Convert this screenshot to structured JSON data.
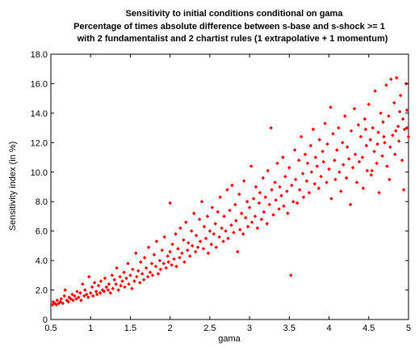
{
  "chart_data": {
    "type": "scatter",
    "title_lines": [
      "Sensitivity to initial conditions conditional on gama",
      "Percentage of times absolute difference between s-base and s-shock >= 1",
      "with 2 fundamentalist and 2 chartist rules (1 extrapolative + 1 momentum)"
    ],
    "xlabel": "gama",
    "ylabel": "Sensitivity index (in %)",
    "xlim": [
      0.5,
      5
    ],
    "ylim": [
      0,
      18
    ],
    "x_ticks": [
      "0.5",
      "1",
      "1.5",
      "2",
      "2.5",
      "3",
      "3.5",
      "4",
      "4.5",
      "5"
    ],
    "y_ticks": [
      "0",
      "2.0",
      "4.0",
      "6.0",
      "8.0",
      "10.0",
      "12.0",
      "14.0",
      "16.0",
      "18.0"
    ],
    "grid": false,
    "marker_color": "#ff0000",
    "series": [
      {
        "points": [
          [
            0.52,
            1.0
          ],
          [
            0.53,
            1.2
          ],
          [
            0.55,
            1.1
          ],
          [
            0.57,
            1.0
          ],
          [
            0.58,
            1.3
          ],
          [
            0.6,
            1.1
          ],
          [
            0.62,
            1.2
          ],
          [
            0.63,
            1.4
          ],
          [
            0.65,
            1.1
          ],
          [
            0.67,
            1.6
          ],
          [
            0.68,
            2.0
          ],
          [
            0.7,
            1.3
          ],
          [
            0.72,
            1.2
          ],
          [
            0.73,
            1.5
          ],
          [
            0.75,
            1.4
          ],
          [
            0.77,
            1.7
          ],
          [
            0.78,
            1.3
          ],
          [
            0.8,
            1.6
          ],
          [
            0.82,
            1.4
          ],
          [
            0.83,
            1.9
          ],
          [
            0.85,
            1.5
          ],
          [
            0.87,
            1.8
          ],
          [
            0.88,
            1.3
          ],
          [
            0.9,
            2.4
          ],
          [
            0.92,
            1.6
          ],
          [
            0.93,
            2.0
          ],
          [
            0.95,
            1.7
          ],
          [
            0.97,
            1.5
          ],
          [
            0.98,
            2.9
          ],
          [
            1.0,
            1.8
          ],
          [
            1.02,
            2.2
          ],
          [
            1.03,
            1.6
          ],
          [
            1.05,
            2.5
          ],
          [
            1.07,
            1.9
          ],
          [
            1.08,
            1.7
          ],
          [
            1.1,
            2.3
          ],
          [
            1.12,
            1.8
          ],
          [
            1.13,
            2.6
          ],
          [
            1.15,
            2.0
          ],
          [
            1.17,
            1.9
          ],
          [
            1.18,
            2.8
          ],
          [
            1.2,
            2.2
          ],
          [
            1.22,
            2.0
          ],
          [
            1.23,
            2.4
          ],
          [
            1.25,
            1.8
          ],
          [
            1.27,
            3.0
          ],
          [
            1.28,
            2.1
          ],
          [
            1.3,
            2.7
          ],
          [
            1.32,
            2.4
          ],
          [
            1.33,
            3.5
          ],
          [
            1.35,
            2.0
          ],
          [
            1.37,
            2.9
          ],
          [
            1.38,
            2.3
          ],
          [
            1.4,
            2.6
          ],
          [
            1.42,
            3.2
          ],
          [
            1.43,
            2.2
          ],
          [
            1.45,
            2.8
          ],
          [
            1.47,
            3.8
          ],
          [
            1.48,
            2.4
          ],
          [
            1.5,
            3.0
          ],
          [
            1.52,
            2.1
          ],
          [
            1.53,
            3.4
          ],
          [
            1.55,
            2.6
          ],
          [
            1.57,
            4.5
          ],
          [
            1.58,
            2.9
          ],
          [
            1.6,
            3.3
          ],
          [
            1.62,
            2.5
          ],
          [
            1.63,
            3.9
          ],
          [
            1.65,
            3.1
          ],
          [
            1.67,
            2.7
          ],
          [
            1.68,
            4.2
          ],
          [
            1.7,
            3.5
          ],
          [
            1.72,
            2.9
          ],
          [
            1.73,
            4.9
          ],
          [
            1.75,
            3.2
          ],
          [
            1.77,
            3.8
          ],
          [
            1.78,
            3.0
          ],
          [
            1.8,
            4.4
          ],
          [
            1.82,
            3.6
          ],
          [
            1.83,
            5.3
          ],
          [
            1.85,
            3.1
          ],
          [
            1.87,
            4.0
          ],
          [
            1.88,
            3.4
          ],
          [
            1.9,
            4.7
          ],
          [
            1.92,
            3.8
          ],
          [
            1.93,
            5.6
          ],
          [
            1.95,
            3.5
          ],
          [
            1.97,
            4.3
          ],
          [
            1.98,
            3.9
          ],
          [
            2.0,
            7.9
          ],
          [
            2.0,
            4.6
          ],
          [
            2.02,
            3.7
          ],
          [
            2.03,
            5.1
          ],
          [
            2.05,
            4.1
          ],
          [
            2.07,
            5.8
          ],
          [
            2.08,
            3.6
          ],
          [
            2.1,
            4.8
          ],
          [
            2.12,
            4.2
          ],
          [
            2.13,
            6.2
          ],
          [
            2.15,
            4.5
          ],
          [
            2.17,
            5.4
          ],
          [
            2.18,
            3.9
          ],
          [
            2.2,
            6.6
          ],
          [
            2.22,
            4.7
          ],
          [
            2.23,
            5.2
          ],
          [
            2.25,
            4.3
          ],
          [
            2.27,
            6.0
          ],
          [
            2.28,
            5.0
          ],
          [
            2.3,
            7.2
          ],
          [
            2.32,
            4.6
          ],
          [
            2.33,
            5.7
          ],
          [
            2.35,
            4.9
          ],
          [
            2.37,
            6.8
          ],
          [
            2.38,
            5.3
          ],
          [
            2.4,
            8.0
          ],
          [
            2.42,
            4.8
          ],
          [
            2.43,
            6.3
          ],
          [
            2.45,
            5.5
          ],
          [
            2.47,
            7.0
          ],
          [
            2.48,
            4.5
          ],
          [
            2.5,
            6.0
          ],
          [
            2.52,
            5.1
          ],
          [
            2.53,
            7.6
          ],
          [
            2.55,
            5.8
          ],
          [
            2.57,
            6.5
          ],
          [
            2.58,
            4.9
          ],
          [
            2.6,
            7.3
          ],
          [
            2.62,
            5.6
          ],
          [
            2.63,
            8.3
          ],
          [
            2.65,
            6.2
          ],
          [
            2.67,
            5.3
          ],
          [
            2.68,
            7.0
          ],
          [
            2.7,
            6.0
          ],
          [
            2.72,
            8.8
          ],
          [
            2.73,
            5.5
          ],
          [
            2.75,
            7.4
          ],
          [
            2.77,
            6.4
          ],
          [
            2.78,
            9.1
          ],
          [
            2.8,
            5.9
          ],
          [
            2.82,
            7.8
          ],
          [
            2.83,
            6.7
          ],
          [
            2.85,
            4.6
          ],
          [
            2.87,
            8.5
          ],
          [
            2.88,
            6.1
          ],
          [
            2.9,
            7.2
          ],
          [
            2.92,
            5.8
          ],
          [
            2.93,
            9.4
          ],
          [
            2.95,
            6.9
          ],
          [
            2.97,
            8.0
          ],
          [
            2.98,
            6.3
          ],
          [
            3.0,
            7.6
          ],
          [
            3.02,
            10.4
          ],
          [
            3.03,
            6.6
          ],
          [
            3.05,
            8.2
          ],
          [
            3.07,
            7.0
          ],
          [
            3.08,
            9.0
          ],
          [
            3.1,
            6.2
          ],
          [
            3.12,
            7.9
          ],
          [
            3.13,
            8.6
          ],
          [
            3.15,
            6.8
          ],
          [
            3.17,
            9.6
          ],
          [
            3.18,
            7.3
          ],
          [
            3.2,
            8.3
          ],
          [
            3.22,
            6.5
          ],
          [
            3.23,
            10.1
          ],
          [
            3.25,
            7.8
          ],
          [
            3.27,
            13.0
          ],
          [
            3.28,
            8.8
          ],
          [
            3.3,
            7.1
          ],
          [
            3.32,
            9.3
          ],
          [
            3.33,
            8.1
          ],
          [
            3.35,
            10.6
          ],
          [
            3.37,
            7.5
          ],
          [
            3.38,
            9.0
          ],
          [
            3.4,
            8.4
          ],
          [
            3.42,
            11.0
          ],
          [
            3.43,
            7.7
          ],
          [
            3.45,
            9.7
          ],
          [
            3.47,
            8.7
          ],
          [
            3.48,
            7.2
          ],
          [
            3.5,
            10.3
          ],
          [
            3.52,
            3.0
          ],
          [
            3.53,
            9.1
          ],
          [
            3.55,
            8.0
          ],
          [
            3.57,
            11.5
          ],
          [
            3.58,
            9.5
          ],
          [
            3.6,
            7.9
          ],
          [
            3.62,
            10.8
          ],
          [
            3.63,
            8.8
          ],
          [
            3.65,
            12.4
          ],
          [
            3.67,
            9.9
          ],
          [
            3.68,
            8.3
          ],
          [
            3.7,
            11.2
          ],
          [
            3.72,
            9.4
          ],
          [
            3.73,
            10.6
          ],
          [
            3.75,
            8.6
          ],
          [
            3.77,
            11.8
          ],
          [
            3.78,
            10.0
          ],
          [
            3.8,
            12.9
          ],
          [
            3.82,
            9.2
          ],
          [
            3.83,
            11.0
          ],
          [
            3.85,
            10.4
          ],
          [
            3.87,
            8.9
          ],
          [
            3.88,
            12.2
          ],
          [
            3.9,
            9.7
          ],
          [
            3.92,
            11.4
          ],
          [
            3.93,
            10.7
          ],
          [
            3.95,
            13.3
          ],
          [
            3.97,
            9.3
          ],
          [
            3.98,
            11.9
          ],
          [
            4.0,
            10.2
          ],
          [
            4.02,
            14.4
          ],
          [
            4.03,
            8.2
          ],
          [
            4.05,
            12.6
          ],
          [
            4.07,
            10.8
          ],
          [
            4.08,
            9.5
          ],
          [
            4.1,
            11.5
          ],
          [
            4.12,
            13.0
          ],
          [
            4.13,
            10.0
          ],
          [
            4.15,
            8.7
          ],
          [
            4.17,
            12.0
          ],
          [
            4.18,
            10.5
          ],
          [
            4.2,
            13.8
          ],
          [
            4.22,
            9.6
          ],
          [
            4.23,
            11.7
          ],
          [
            4.25,
            10.9
          ],
          [
            4.27,
            7.8
          ],
          [
            4.28,
            12.8
          ],
          [
            4.3,
            10.3
          ],
          [
            4.32,
            14.3
          ],
          [
            4.33,
            11.2
          ],
          [
            4.35,
            9.3
          ],
          [
            4.37,
            13.2
          ],
          [
            4.38,
            10.7
          ],
          [
            4.4,
            12.4
          ],
          [
            4.42,
            11.0
          ],
          [
            4.43,
            8.9
          ],
          [
            4.45,
            13.6
          ],
          [
            4.47,
            11.8
          ],
          [
            4.48,
            10.1
          ],
          [
            4.5,
            14.6
          ],
          [
            4.52,
            12.2
          ],
          [
            4.53,
            9.8
          ],
          [
            4.55,
            13.0
          ],
          [
            4.57,
            11.4
          ],
          [
            4.58,
            15.5
          ],
          [
            4.6,
            10.6
          ],
          [
            4.62,
            12.7
          ],
          [
            4.63,
            8.6
          ],
          [
            4.65,
            14.0
          ],
          [
            4.67,
            11.1
          ],
          [
            4.68,
            13.4
          ],
          [
            4.7,
            12.0
          ],
          [
            4.72,
            15.9
          ],
          [
            4.73,
            10.4
          ],
          [
            4.75,
            13.8
          ],
          [
            4.77,
            11.7
          ],
          [
            4.78,
            16.3
          ],
          [
            4.8,
            12.5
          ],
          [
            4.82,
            14.7
          ],
          [
            4.83,
            11.2
          ],
          [
            4.85,
            16.4
          ],
          [
            4.87,
            13.1
          ],
          [
            4.88,
            12.1
          ],
          [
            4.9,
            15.2
          ],
          [
            4.92,
            10.8
          ],
          [
            4.93,
            13.6
          ],
          [
            4.95,
            12.9
          ],
          [
            4.97,
            16.0
          ],
          [
            4.98,
            14.2
          ],
          [
            5.0,
            12.4
          ],
          [
            4.98,
            13.0
          ],
          [
            4.94,
            8.8
          ],
          [
            4.89,
            14.1
          ],
          [
            4.84,
            12.8
          ],
          [
            4.76,
            9.5
          ],
          [
            4.69,
            12.4
          ],
          [
            4.61,
            11.9
          ],
          [
            4.54,
            10.1
          ],
          [
            4.46,
            12.9
          ]
        ]
      }
    ]
  }
}
